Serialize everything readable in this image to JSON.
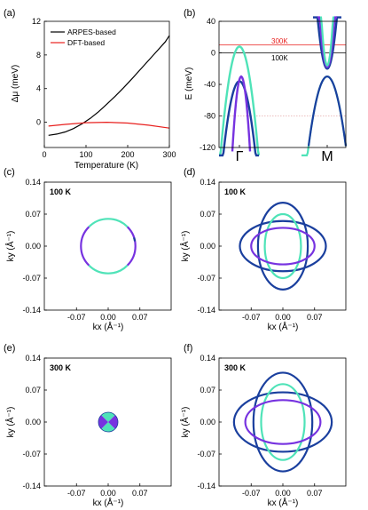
{
  "colors": {
    "arpes": "#000000",
    "dft": "#e8201e",
    "navy": "#1a3f9e",
    "purple": "#7733e0",
    "teal": "#4fe3b8"
  },
  "chart_data": [
    {
      "id": "a",
      "panel_label": "(a)",
      "type": "line",
      "xlabel": "Temperature (K)",
      "ylabel": "Δμ (meV)",
      "xlim": [
        0,
        300
      ],
      "ylim": [
        -3,
        12
      ],
      "xticks": [
        0,
        100,
        200,
        300
      ],
      "yticks": [
        0,
        4,
        8,
        12
      ],
      "legend": "top-left",
      "series": [
        {
          "name": "ARPES-based",
          "color": "#000000",
          "x": [
            10,
            30,
            50,
            70,
            90,
            110,
            130,
            150,
            170,
            190,
            210,
            230,
            250,
            270,
            290,
            300
          ],
          "y": [
            -1.55,
            -1.4,
            -1.15,
            -0.75,
            -0.2,
            0.45,
            1.25,
            2.15,
            3.1,
            4.1,
            5.15,
            6.25,
            7.35,
            8.45,
            9.55,
            10.3
          ]
        },
        {
          "name": "DFT-based",
          "color": "#e8201e",
          "x": [
            10,
            50,
            100,
            150,
            200,
            250,
            300
          ],
          "y": [
            -0.45,
            -0.25,
            -0.05,
            0.0,
            -0.1,
            -0.35,
            -0.7
          ]
        }
      ]
    },
    {
      "id": "b",
      "panel_label": "(b)",
      "type": "line",
      "ylabel": "E (meV)",
      "ylim": [
        -120,
        40
      ],
      "yticks": [
        40,
        0,
        -40,
        -80,
        -120
      ],
      "xtick_labels": [
        "Γ",
        "M"
      ],
      "annotations": [
        "300K",
        "100K"
      ],
      "reference_lines": [
        {
          "label": "300K",
          "y": 10,
          "color": "#e8201e"
        },
        {
          "label": "100K",
          "y": 0,
          "color": "#000000"
        }
      ]
    },
    {
      "id": "c",
      "panel_label": "(c)",
      "type": "scatter",
      "annotation": "100 K",
      "xlabel": "kx (Å⁻¹)",
      "ylabel": "ky (Å⁻¹)",
      "xticks": [
        "-0.07",
        "0.00",
        "0.07"
      ],
      "yticks": [
        "0.14",
        "0.07",
        "0.00",
        "-0.07",
        "-0.14"
      ],
      "xlim": [
        -0.14,
        0.14
      ],
      "ylim": [
        -0.14,
        0.14
      ],
      "contours": [
        {
          "shape": "circle",
          "radius": 0.06,
          "colors": [
            "purple",
            "teal",
            "navy"
          ]
        }
      ]
    },
    {
      "id": "d",
      "panel_label": "(d)",
      "type": "scatter",
      "annotation": "100 K",
      "xlabel": "kx (Å⁻¹)",
      "ylabel": "ky (Å⁻¹)",
      "xticks": [
        "-0.07",
        "0.00",
        "0.07"
      ],
      "yticks": [
        "0.14",
        "0.07",
        "0.00",
        "-0.07",
        "-0.14"
      ],
      "xlim": [
        -0.14,
        0.14
      ],
      "ylim": [
        -0.14,
        0.14
      ],
      "contours": [
        {
          "shape": "ellipse",
          "rx": 0.055,
          "ry": 0.095,
          "color": "navy"
        },
        {
          "shape": "ellipse",
          "rx": 0.095,
          "ry": 0.055,
          "color": "navy"
        },
        {
          "shape": "ellipse",
          "rx": 0.04,
          "ry": 0.07,
          "color": "teal"
        },
        {
          "shape": "ellipse",
          "rx": 0.07,
          "ry": 0.04,
          "color": "purple"
        }
      ]
    },
    {
      "id": "e",
      "panel_label": "(e)",
      "type": "scatter",
      "annotation": "300 K",
      "xlabel": "kx (Å⁻¹)",
      "ylabel": "ky (Å⁻¹)",
      "xticks": [
        "-0.07",
        "0.00",
        "0.07"
      ],
      "yticks": [
        "0.14",
        "0.07",
        "0.00",
        "-0.07",
        "-0.14"
      ],
      "xlim": [
        -0.14,
        0.14
      ],
      "ylim": [
        -0.14,
        0.14
      ],
      "contours": [
        {
          "shape": "disk",
          "radius": 0.014,
          "colors": [
            "purple",
            "teal",
            "navy"
          ]
        }
      ]
    },
    {
      "id": "f",
      "panel_label": "(f)",
      "type": "scatter",
      "annotation": "300 K",
      "xlabel": "kx (Å⁻¹)",
      "ylabel": "ky (Å⁻¹)",
      "xticks": [
        "-0.07",
        "0.00",
        "0.07"
      ],
      "yticks": [
        "0.14",
        "0.07",
        "0.00",
        "-0.07",
        "-0.14"
      ],
      "xlim": [
        -0.14,
        0.14
      ],
      "ylim": [
        -0.14,
        0.14
      ],
      "contours": [
        {
          "shape": "ellipse",
          "rx": 0.065,
          "ry": 0.108,
          "color": "navy"
        },
        {
          "shape": "ellipse",
          "rx": 0.108,
          "ry": 0.065,
          "color": "navy"
        },
        {
          "shape": "ellipse",
          "rx": 0.048,
          "ry": 0.083,
          "color": "teal"
        },
        {
          "shape": "ellipse",
          "rx": 0.083,
          "ry": 0.048,
          "color": "purple"
        }
      ]
    }
  ]
}
